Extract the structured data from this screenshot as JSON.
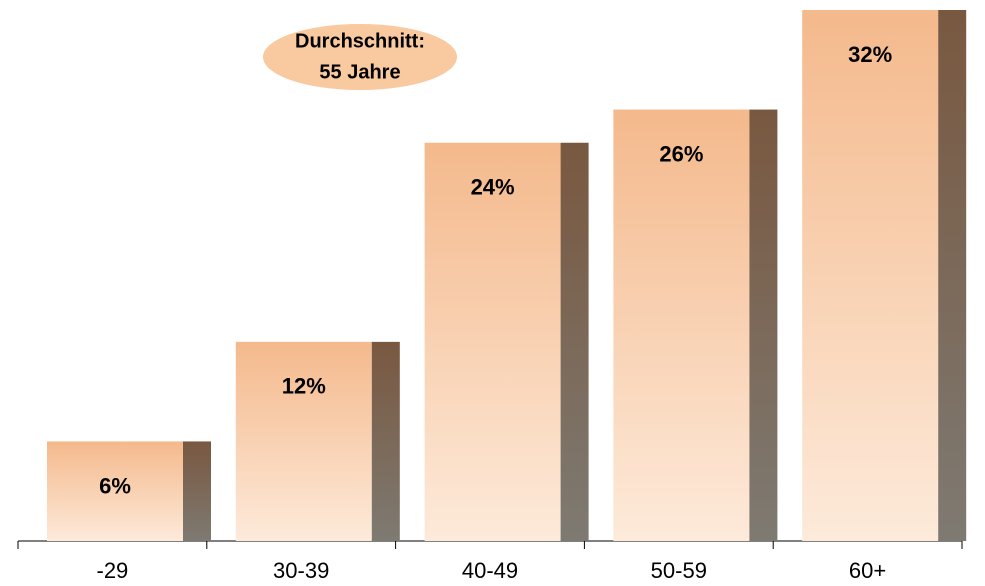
{
  "chart_data": {
    "type": "bar",
    "annotation": [
      "Durchschnitt:",
      "55 Jahre"
    ],
    "categories": [
      "-29",
      "30-39",
      "40-49",
      "50-59",
      "60+"
    ],
    "values": [
      6,
      12,
      24,
      26,
      32
    ],
    "value_labels": [
      "6%",
      "12%",
      "24%",
      "26%",
      "32%"
    ]
  }
}
